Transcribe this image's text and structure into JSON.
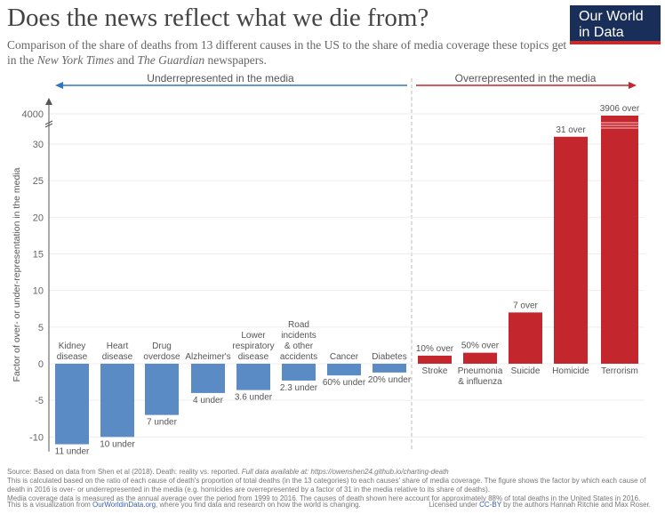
{
  "title": "Does the news reflect what we die from?",
  "subtitle_parts": [
    "Comparison of the share of deaths from 13 different causes in the US to the share of media coverage these topics get in the ",
    "New York Times",
    " and ",
    "The Guardian",
    " newspapers."
  ],
  "logo": "Our World in Data",
  "chart_data": {
    "type": "bar",
    "ylabel": "Factor of over- or under-representation in the media",
    "yticks": [
      -10,
      -5,
      0,
      5,
      10,
      15,
      20,
      25,
      30
    ],
    "ybreak_tick": 4000,
    "ylim": [
      -12,
      4000
    ],
    "left_arrow_label": "Underrepresented in the media",
    "right_arrow_label": "Overrepresented in the media",
    "categories": [
      "Kidney disease",
      "Heart disease",
      "Drug overdose",
      "Alzheimer's",
      "Lower respiratory disease",
      "Road incidents & other accidents",
      "Cancer",
      "Diabetes",
      "Stroke",
      "Pneumonia & influenza",
      "Suicide",
      "Homicide",
      "Terrorism"
    ],
    "values": [
      -11,
      -10,
      -7,
      -4,
      -3.6,
      -2.3,
      -1.6,
      -1.2,
      1.1,
      1.5,
      7,
      31,
      3906
    ],
    "data_labels": [
      "11 under",
      "10 under",
      "7 under",
      "4 under",
      "3.6 under",
      "2.3 under",
      "60% under",
      "20% under",
      "10% over",
      "50% over",
      "7 over",
      "31 over",
      "3906 over"
    ],
    "colors": {
      "under": "#5b8bc4",
      "over": "#c4262e",
      "left_arrow": "#2d78c0",
      "right_arrow": "#c4262e"
    }
  },
  "footer": {
    "source": "Source: Based on data from Shen et al (2018). Death: reality vs. reported. ",
    "source_italic": "Full data available at: https://owenshen24.github.io/charting-death",
    "note1": "This is calculated based on the ratio of each cause of death's proportion of total deaths (in the 13 categories) to each causes' share of media coverage. The figure shows the factor by which each cause of death in 2016 is over- or underrepresented in the media (e.g. homicides are overrepresented by a factor of 31 in the media relative to its share of deaths).",
    "note2": "Media coverage data is measured as the annual average over the period from 1999 to 2016. The causes of death shown here account for approximately 88% of total deaths in the United States in 2016.",
    "viz_pre": "This is a visualization from ",
    "viz_link": "OurWorldinData.org",
    "viz_post": ", where you find data and research on how the world is changing.",
    "lic_pre": "Licensed under ",
    "lic_link": "CC-BY",
    "lic_post": " by the authors Hannah Ritchie and Max Roser."
  }
}
